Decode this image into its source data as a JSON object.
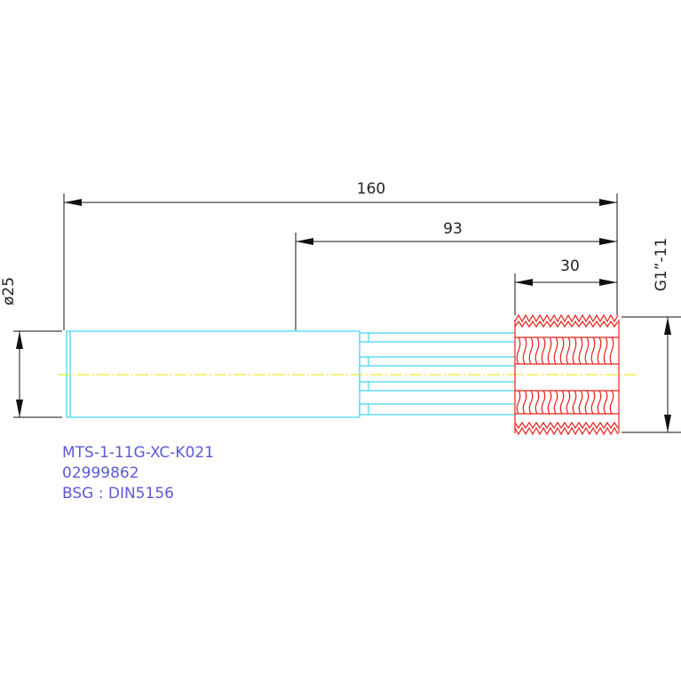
{
  "dimensions": {
    "overall_length": "160",
    "shank_to_end": "93",
    "thread_length": "30",
    "shank_diameter": "ø25",
    "thread_size": "G1”-11"
  },
  "labels": [
    "MTS-1-11G-XC-K021",
    "02999862",
    "BSG : DIN5156"
  ]
}
